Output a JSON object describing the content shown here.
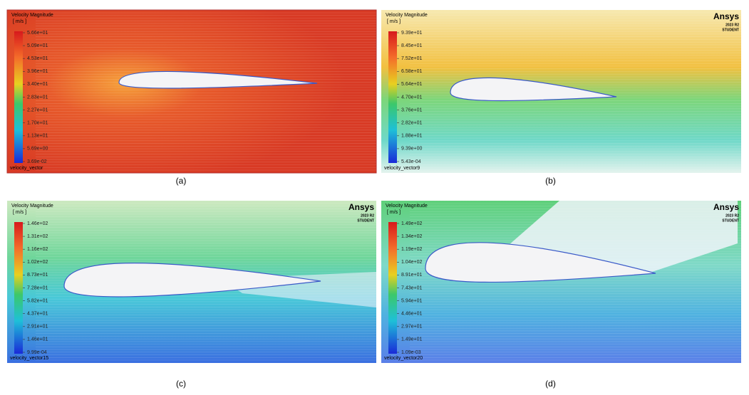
{
  "panels": [
    {
      "title": "Velocity Magnitude",
      "unit": "[ m/s ]",
      "vector": "velocity_vector",
      "caption": "(a)",
      "ticks": [
        "5.66e+01",
        "5.09e+01",
        "4.53e+01",
        "3.96e+01",
        "3.40e+01",
        "2.83e+01",
        "2.27e+01",
        "1.70e+01",
        "1.13e+01",
        "5.69e+00",
        "3.69e-02"
      ]
    },
    {
      "title": "Velocity Magnitude",
      "unit": "[ m/s ]",
      "vector": "velocity_vector9",
      "caption": "(b)",
      "logo": {
        "brand": "Ansys",
        "version": "2023 R2",
        "edition": "STUDENT"
      },
      "ticks": [
        "9.39e+01",
        "8.45e+01",
        "7.52e+01",
        "6.58e+01",
        "5.64e+01",
        "4.70e+01",
        "3.76e+01",
        "2.82e+01",
        "1.88e+01",
        "9.39e+00",
        "5.43e-04"
      ]
    },
    {
      "title": "Velocity Magnitude",
      "unit": "[ m/s ]",
      "vector": "velocity_vector15",
      "caption": "(c)",
      "logo": {
        "brand": "Ansys",
        "version": "2023 R2",
        "edition": "STUDENT"
      },
      "ticks": [
        "1.46e+02",
        "1.31e+02",
        "1.16e+02",
        "1.02e+02",
        "8.73e+01",
        "7.28e+01",
        "5.82e+01",
        "4.37e+01",
        "2.91e+01",
        "1.46e+01",
        "9.99e-04"
      ]
    },
    {
      "title": "Velocity Magnitude",
      "unit": "[ m/s ]",
      "vector": "velocity_vector20",
      "caption": "(d)",
      "logo": {
        "brand": "Ansys",
        "version": "2023 R2",
        "edition": "STUDENT"
      },
      "ticks": [
        "1.49e+02",
        "1.34e+02",
        "1.19e+02",
        "1.04e+02",
        "8.91e+01",
        "7.43e+01",
        "5.94e+01",
        "4.46e+01",
        "2.97e+01",
        "1.49e+01",
        "1.09e-03"
      ]
    }
  ]
}
